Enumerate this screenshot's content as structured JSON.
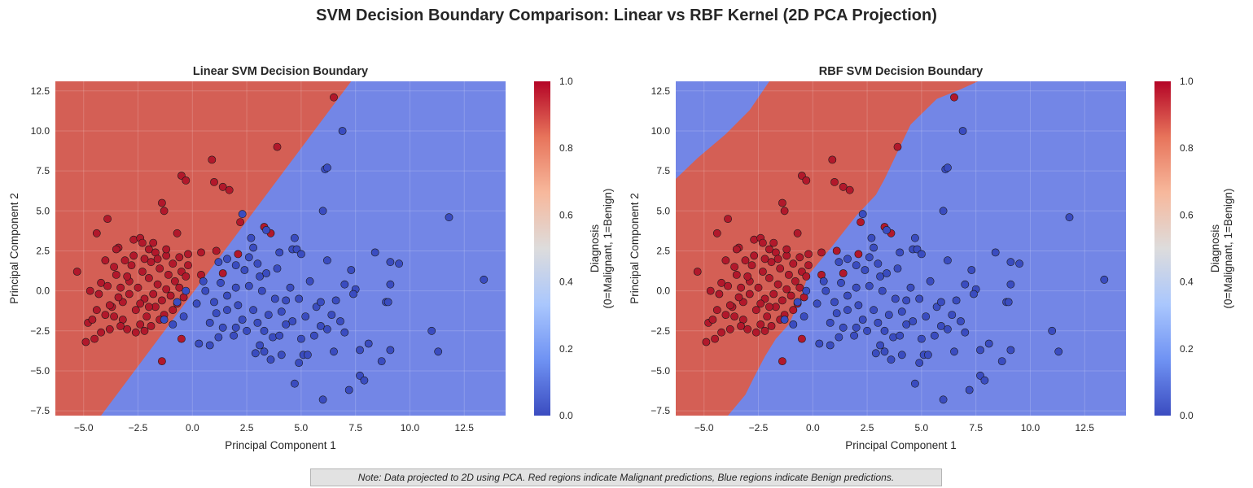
{
  "figure": {
    "suptitle": "SVM Decision Boundary Comparison: Linear vs RBF Kernel (2D PCA Projection)",
    "note": "Note: Data projected to 2D using PCA. Red regions indicate Malignant predictions, Blue regions indicate Benign predictions."
  },
  "colors": {
    "malignant_point": "#b2182b",
    "benign_point": "#3a4cc0",
    "malignant_region": "#d45f55",
    "benign_region": "#7386e6",
    "colormap": [
      "#3b4cc0",
      "#6f92f3",
      "#aac7fd",
      "#dddcdc",
      "#f7b89c",
      "#e7745b",
      "#b40426"
    ]
  },
  "chart_data": [
    {
      "type": "scatter",
      "title": "Linear SVM Decision Boundary",
      "xlabel": "Principal Component 1",
      "ylabel": "Principal Component 2",
      "xlim": [
        -6.3,
        14.4
      ],
      "ylim": [
        -7.8,
        13.1
      ],
      "xticks": [
        -5.0,
        -2.5,
        0.0,
        2.5,
        5.0,
        7.5,
        10.0,
        12.5
      ],
      "xtick_labels": [
        "−5.0",
        "−2.5",
        "0.0",
        "2.5",
        "5.0",
        "7.5",
        "10.0",
        "12.5"
      ],
      "yticks": [
        -7.5,
        -5.0,
        -2.5,
        0.0,
        2.5,
        5.0,
        7.5,
        10.0,
        12.5
      ],
      "ytick_labels": [
        "−7.5",
        "−5.0",
        "−2.5",
        "0.0",
        "2.5",
        "5.0",
        "7.5",
        "10.0",
        "12.5"
      ],
      "grid": true,
      "decision_regions": {
        "kernel": "linear",
        "malignant_boundary": [
          [
            -6.3,
            13.1
          ],
          [
            7.3,
            13.1
          ],
          [
            -4.2,
            -7.8
          ],
          [
            -6.3,
            -7.8
          ]
        ]
      },
      "colorbar": {
        "label_line1": "Diagnosis",
        "label_line2": "(0=Malignant, 1=Benign)",
        "ticks": [
          "0.0",
          "0.2",
          "0.4",
          "0.6",
          "0.8",
          "1.0"
        ]
      },
      "series": [
        {
          "name": "",
          "class": "malignant",
          "points": [
            [
              -5.3,
              1.2
            ],
            [
              -4.4,
              3.6
            ],
            [
              -3.9,
              4.5
            ],
            [
              -3.4,
              2.7
            ],
            [
              -3.5,
              2.6
            ],
            [
              -2.7,
              3.2
            ],
            [
              -2.4,
              3.3
            ],
            [
              -2.3,
              3.0
            ],
            [
              -2.0,
              2.6
            ],
            [
              -1.7,
              2.4
            ],
            [
              -1.2,
              2.2
            ],
            [
              -0.7,
              3.6
            ],
            [
              -0.5,
              7.2
            ],
            [
              -0.3,
              6.9
            ],
            [
              0.9,
              8.2
            ],
            [
              1.4,
              6.5
            ],
            [
              1.7,
              6.3
            ],
            [
              1.0,
              6.8
            ],
            [
              -1.4,
              5.5
            ],
            [
              -1.3,
              5.0
            ],
            [
              2.2,
              4.3
            ],
            [
              3.3,
              4.0
            ],
            [
              3.6,
              3.6
            ],
            [
              3.9,
              9.0
            ],
            [
              6.5,
              12.1
            ],
            [
              0.4,
              2.4
            ],
            [
              1.1,
              2.5
            ],
            [
              2.1,
              2.3
            ],
            [
              0.4,
              1.0
            ],
            [
              1.4,
              1.1
            ],
            [
              -0.5,
              -3.0
            ],
            [
              -1.4,
              -4.4
            ],
            [
              -4.8,
              -2.0
            ],
            [
              -4.9,
              -3.2
            ],
            [
              -4.5,
              -3.0
            ],
            [
              -4.6,
              -1.8
            ],
            [
              -4.7,
              0.0
            ],
            [
              -4.3,
              -0.2
            ],
            [
              -4.2,
              0.5
            ],
            [
              -4.0,
              -1.5
            ],
            [
              -4.2,
              -2.6
            ],
            [
              -3.8,
              -2.4
            ],
            [
              -3.7,
              -1.0
            ],
            [
              -3.5,
              1.0
            ],
            [
              -3.3,
              0.2
            ],
            [
              -3.2,
              -0.7
            ],
            [
              -3.2,
              -1.8
            ],
            [
              -3.0,
              -2.4
            ],
            [
              -2.9,
              0.6
            ],
            [
              -2.8,
              1.6
            ],
            [
              -2.6,
              -1.2
            ],
            [
              -2.5,
              0.2
            ],
            [
              -2.4,
              -2.1
            ],
            [
              -2.3,
              1.2
            ],
            [
              -2.2,
              -0.5
            ],
            [
              -2.1,
              -1.6
            ],
            [
              -2.0,
              0.8
            ],
            [
              -1.9,
              1.8
            ],
            [
              -1.8,
              -0.2
            ],
            [
              -1.7,
              -1.0
            ],
            [
              -1.6,
              0.4
            ],
            [
              -1.5,
              1.4
            ],
            [
              -1.4,
              -0.6
            ],
            [
              -1.3,
              -1.5
            ],
            [
              -1.2,
              0.1
            ],
            [
              -1.1,
              1.0
            ],
            [
              -1.0,
              -0.3
            ],
            [
              -0.9,
              1.7
            ],
            [
              -0.8,
              0.6
            ],
            [
              -0.7,
              -0.8
            ],
            [
              -0.6,
              0.2
            ],
            [
              -0.5,
              1.2
            ],
            [
              -0.4,
              -0.4
            ],
            [
              -0.3,
              0.9
            ],
            [
              -0.2,
              1.6
            ],
            [
              -4.0,
              1.9
            ],
            [
              -3.6,
              1.5
            ],
            [
              -3.1,
              1.9
            ],
            [
              -2.7,
              2.2
            ],
            [
              -2.9,
              -0.2
            ],
            [
              -3.4,
              -0.4
            ],
            [
              -3.9,
              0.3
            ],
            [
              -2.2,
              -2.5
            ],
            [
              -1.9,
              -2.2
            ],
            [
              -2.6,
              -2.6
            ],
            [
              -3.3,
              -2.2
            ],
            [
              -3.6,
              -1.6
            ],
            [
              -2.0,
              -1.0
            ],
            [
              -1.5,
              -1.8
            ],
            [
              -0.9,
              -1.2
            ],
            [
              -1.2,
              2.6
            ],
            [
              -1.8,
              3.0
            ],
            [
              -2.2,
              2.0
            ],
            [
              -3.0,
              0.9
            ],
            [
              -2.4,
              -0.8
            ],
            [
              -1.6,
              2.0
            ],
            [
              -0.6,
              2.1
            ],
            [
              -0.2,
              2.3
            ],
            [
              -3.8,
              -0.9
            ],
            [
              -4.4,
              -1.2
            ]
          ]
        },
        {
          "name": "",
          "class": "benign",
          "points": [
            [
              2.3,
              4.8
            ],
            [
              3.4,
              3.8
            ],
            [
              3.9,
              1.4
            ],
            [
              2.7,
              3.3
            ],
            [
              2.8,
              2.7
            ],
            [
              1.6,
              2.0
            ],
            [
              2.6,
              2.1
            ],
            [
              2.4,
              1.3
            ],
            [
              3.1,
              0.9
            ],
            [
              3.4,
              1.1
            ],
            [
              4.0,
              2.4
            ],
            [
              4.6,
              2.6
            ],
            [
              4.7,
              3.3
            ],
            [
              4.8,
              2.6
            ],
            [
              5.0,
              2.3
            ],
            [
              6.0,
              5.0
            ],
            [
              6.1,
              7.6
            ],
            [
              6.2,
              7.7
            ],
            [
              6.9,
              10.0
            ],
            [
              6.2,
              1.9
            ],
            [
              7.3,
              1.3
            ],
            [
              7.5,
              0.1
            ],
            [
              8.4,
              2.4
            ],
            [
              9.1,
              1.8
            ],
            [
              9.5,
              1.7
            ],
            [
              9.1,
              0.4
            ],
            [
              8.9,
              -0.7
            ],
            [
              9.0,
              -0.7
            ],
            [
              9.1,
              -3.7
            ],
            [
              8.7,
              -4.4
            ],
            [
              7.7,
              -5.3
            ],
            [
              7.9,
              -5.6
            ],
            [
              7.2,
              -6.2
            ],
            [
              6.0,
              -6.8
            ],
            [
              4.7,
              -5.8
            ],
            [
              4.9,
              -4.5
            ],
            [
              5.1,
              -4.0
            ],
            [
              5.3,
              -4.0
            ],
            [
              3.6,
              -4.3
            ],
            [
              3.3,
              -3.8
            ],
            [
              2.9,
              -3.9
            ],
            [
              4.1,
              -4.0
            ],
            [
              5.0,
              -3.0
            ],
            [
              6.5,
              -3.8
            ],
            [
              7.7,
              -3.7
            ],
            [
              8.1,
              -3.3
            ],
            [
              11.0,
              -2.5
            ],
            [
              11.3,
              -3.8
            ],
            [
              11.8,
              4.6
            ],
            [
              13.4,
              0.7
            ],
            [
              6.2,
              -2.4
            ],
            [
              5.9,
              -2.2
            ],
            [
              6.4,
              -1.5
            ],
            [
              5.7,
              -1.0
            ],
            [
              4.6,
              -1.9
            ],
            [
              4.3,
              -2.1
            ],
            [
              3.7,
              -2.9
            ],
            [
              3.3,
              -2.5
            ],
            [
              3.0,
              -2.0
            ],
            [
              2.5,
              -2.5
            ],
            [
              1.9,
              -2.8
            ],
            [
              1.2,
              -2.9
            ],
            [
              0.8,
              -3.4
            ],
            [
              0.3,
              -3.3
            ],
            [
              0.8,
              -2.0
            ],
            [
              1.1,
              -1.4
            ],
            [
              1.6,
              -1.2
            ],
            [
              2.1,
              -0.9
            ],
            [
              1.6,
              -0.3
            ],
            [
              1.0,
              -0.7
            ],
            [
              0.2,
              -0.8
            ],
            [
              -0.7,
              -0.7
            ],
            [
              -0.9,
              -2.1
            ],
            [
              -1.3,
              -1.8
            ],
            [
              -0.4,
              -1.6
            ],
            [
              0.6,
              0.0
            ],
            [
              1.3,
              0.5
            ],
            [
              2.0,
              0.2
            ],
            [
              2.6,
              0.3
            ],
            [
              3.2,
              0.0
            ],
            [
              3.8,
              -0.5
            ],
            [
              4.3,
              -0.6
            ],
            [
              4.9,
              -0.5
            ],
            [
              5.4,
              0.6
            ],
            [
              5.2,
              -1.6
            ],
            [
              6.8,
              -1.9
            ],
            [
              6.6,
              -0.6
            ],
            [
              7.0,
              0.4
            ],
            [
              7.4,
              -0.2
            ],
            [
              7.0,
              -2.6
            ],
            [
              5.6,
              -2.8
            ],
            [
              4.1,
              -1.3
            ],
            [
              3.5,
              -1.5
            ],
            [
              2.8,
              -1.2
            ],
            [
              2.3,
              -1.8
            ],
            [
              4.5,
              0.2
            ],
            [
              3.0,
              1.7
            ],
            [
              2.0,
              1.6
            ],
            [
              1.2,
              1.8
            ],
            [
              0.5,
              0.6
            ],
            [
              -0.3,
              0.0
            ],
            [
              5.9,
              -0.7
            ],
            [
              4.0,
              -2.8
            ],
            [
              3.1,
              -3.4
            ],
            [
              2.0,
              -2.3
            ],
            [
              1.4,
              -2.3
            ]
          ]
        }
      ]
    },
    {
      "type": "scatter",
      "title": "RBF SVM Decision Boundary",
      "xlabel": "Principal Component 1",
      "ylabel": "Principal Component 2",
      "xlim": [
        -6.3,
        14.4
      ],
      "ylim": [
        -7.8,
        13.1
      ],
      "xticks": [
        -5.0,
        -2.5,
        0.0,
        2.5,
        5.0,
        7.5,
        10.0,
        12.5
      ],
      "xtick_labels": [
        "−5.0",
        "−2.5",
        "0.0",
        "2.5",
        "5.0",
        "7.5",
        "10.0",
        "12.5"
      ],
      "yticks": [
        -7.5,
        -5.0,
        -2.5,
        0.0,
        2.5,
        5.0,
        7.5,
        10.0,
        12.5
      ],
      "ytick_labels": [
        "−7.5",
        "−5.0",
        "−2.5",
        "0.0",
        "2.5",
        "5.0",
        "7.5",
        "10.0",
        "12.5"
      ],
      "grid": true,
      "decision_regions": {
        "kernel": "rbf",
        "malignant_boundary": [
          [
            -6.3,
            7.0
          ],
          [
            -5.3,
            8.3
          ],
          [
            -4.0,
            9.8
          ],
          [
            -2.9,
            11.3
          ],
          [
            -2.0,
            13.1
          ],
          [
            7.6,
            13.1
          ],
          [
            6.8,
            12.6
          ],
          [
            5.7,
            12.0
          ],
          [
            4.5,
            10.4
          ],
          [
            3.3,
            7.0
          ],
          [
            2.9,
            6.0
          ],
          [
            2.0,
            4.7
          ],
          [
            0.9,
            2.8
          ],
          [
            -0.2,
            1.0
          ],
          [
            -0.7,
            -0.9
          ],
          [
            -1.1,
            -2.1
          ],
          [
            -1.7,
            -3.0
          ],
          [
            -2.2,
            -4.1
          ],
          [
            -2.7,
            -5.4
          ],
          [
            -3.1,
            -6.5
          ],
          [
            -3.9,
            -7.8
          ],
          [
            -6.3,
            -7.8
          ]
        ]
      },
      "colorbar": {
        "label_line1": "Diagnosis",
        "label_line2": "(0=Malignant, 1=Benign)",
        "ticks": [
          "0.0",
          "0.2",
          "0.4",
          "0.6",
          "0.8",
          "1.0"
        ]
      },
      "series": [
        {
          "name": "",
          "class": "malignant",
          "same_as_panel": 0
        },
        {
          "name": "",
          "class": "benign",
          "same_as_panel": 0
        }
      ]
    }
  ]
}
